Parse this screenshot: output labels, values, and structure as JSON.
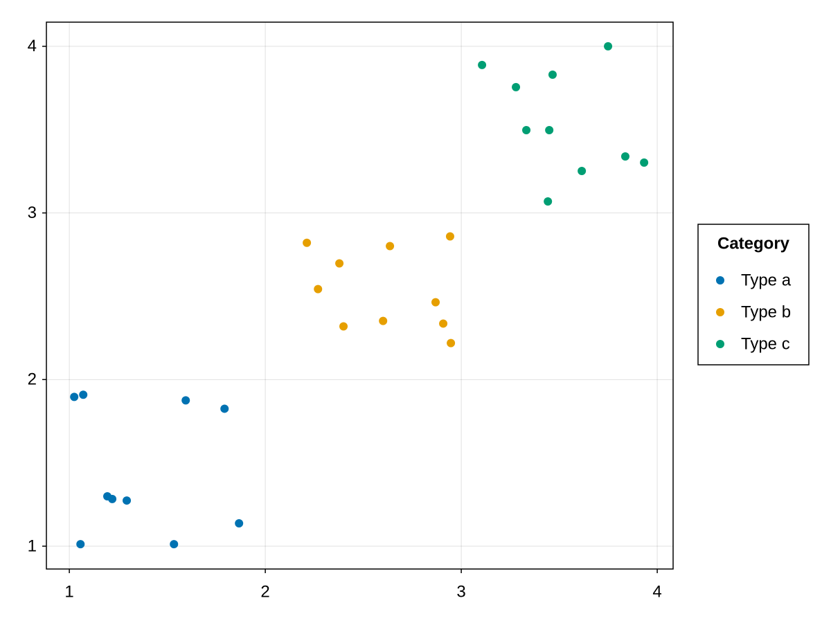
{
  "chart_data": {
    "type": "scatter",
    "legend_title": "Category",
    "legend_position": "right",
    "grid": true,
    "xlim": [
      0.883,
      4.081
    ],
    "xticks": [
      1,
      2,
      3,
      4
    ],
    "ylim": [
      0.863,
      4.145
    ],
    "yticks": [
      1,
      2,
      3,
      4
    ],
    "series": [
      {
        "name": "Type a",
        "color": "#0072b2",
        "x": [
          1.025,
          1.071,
          1.594,
          1.792,
          1.194,
          1.219,
          1.293,
          1.866,
          1.057,
          1.534
        ],
        "values": [
          1.896,
          1.909,
          1.875,
          1.825,
          1.299,
          1.283,
          1.274,
          1.137,
          1.012,
          1.012
        ]
      },
      {
        "name": "Type b",
        "color": "#e69f00",
        "x": [
          2.212,
          2.378,
          2.269,
          2.636,
          2.943,
          2.869,
          2.601,
          2.399,
          2.908,
          2.947
        ],
        "values": [
          2.821,
          2.697,
          2.543,
          2.801,
          2.859,
          2.464,
          2.352,
          2.319,
          2.336,
          2.219
        ]
      },
      {
        "name": "Type c",
        "color": "#009e73",
        "x": [
          3.106,
          3.749,
          3.279,
          3.466,
          3.332,
          3.449,
          3.615,
          3.837,
          3.933,
          3.442
        ],
        "values": [
          3.888,
          4.0,
          3.755,
          3.83,
          3.497,
          3.497,
          3.252,
          3.339,
          3.302,
          3.069
        ]
      }
    ]
  }
}
